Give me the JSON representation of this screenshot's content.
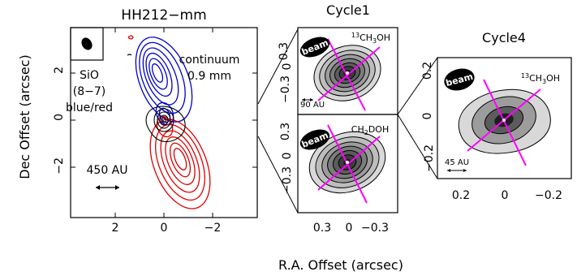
{
  "figure": {
    "x_axis_label": "R.A. Offset (arcsec)",
    "y_axis_label": "Dec Offset (arcsec)"
  },
  "panel_main": {
    "title": "HH212−mm",
    "label_line": "SiO",
    "label_transition": "(8−7)",
    "label_colors": "blue/red",
    "continuum_line1": "continuum",
    "continuum_line2": "0.9 mm",
    "scalebar_label": "450 AU",
    "x_ticks": [
      "2",
      "0",
      "−2"
    ],
    "y_ticks": [
      "2",
      "0",
      "−2"
    ],
    "blue_color": "#0000cc",
    "red_color": "#dd0000"
  },
  "panel_cycle1": {
    "title": "Cycle1",
    "top_species": "13CH3OH",
    "bottom_species": "CH2DOH",
    "beam_label": "beam",
    "scalebar_label": "90 AU",
    "y_ticks_top": [
      "0.3",
      "0",
      "−0.3"
    ],
    "y_ticks_bottom": [
      "0.3",
      "0",
      "−0.3"
    ],
    "x_ticks": [
      "0.3",
      "0",
      "−0.3"
    ],
    "axis_color": "#ff00ff"
  },
  "panel_cycle4": {
    "title": "Cycle4",
    "species": "13CH3OH",
    "beam_label": "beam",
    "scalebar_label": "45 AU",
    "y_ticks": [
      "0.2",
      "0",
      "−0.2"
    ],
    "x_ticks": [
      "0.2",
      "0",
      "−0.2"
    ],
    "axis_color": "#ff00ff"
  }
}
